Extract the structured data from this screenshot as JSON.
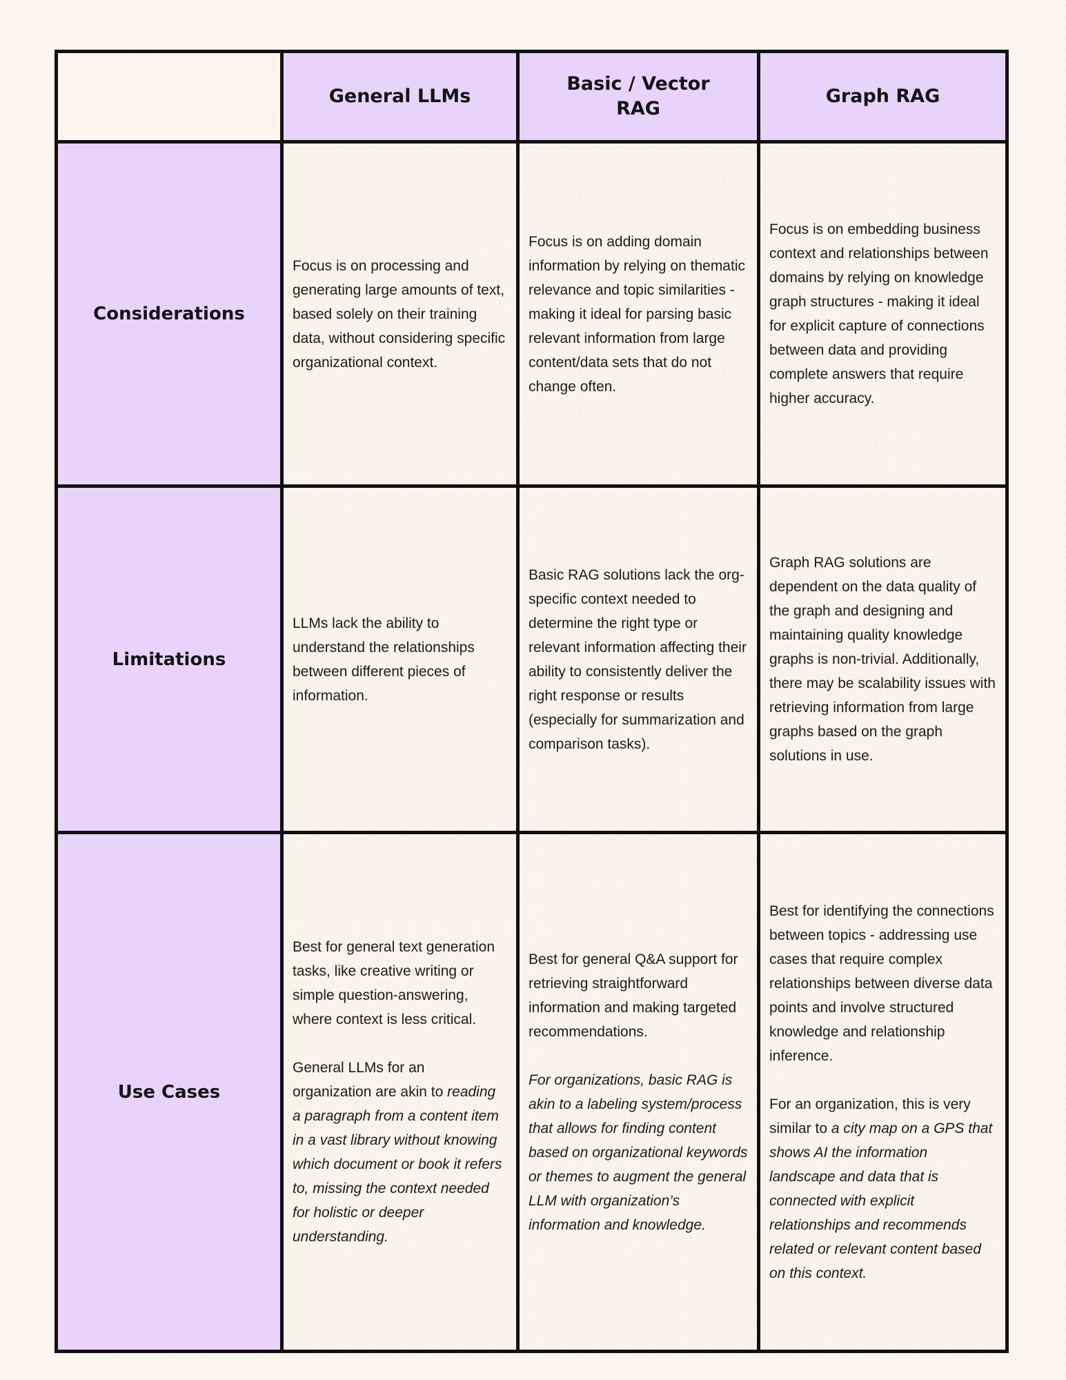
{
  "page": {
    "background_color": "#faf5ed"
  },
  "table": {
    "border_color": "#111111",
    "header_bg": "#e8d4fb",
    "label_bg": "#e8d4fb",
    "cell_bg": "#f8f4ec",
    "column_headers": [
      "General LLMs",
      "Basic / Vector RAG",
      "Graph RAG"
    ],
    "row_labels": [
      "Considerations",
      "Limitations",
      "Use Cases"
    ],
    "cells": {
      "considerations": {
        "general_llms": [
          [
            {
              "t": "Focus is on processing and generating large amounts of text, based solely on their training data, without considering specific organizational context.",
              "i": false
            }
          ]
        ],
        "basic_vector_rag": [
          [
            {
              "t": "Focus is on adding domain information by relying on thematic relevance and topic similarities - making it ideal for parsing basic relevant information from large content/data sets that do not change often.",
              "i": false
            }
          ]
        ],
        "graph_rag": [
          [
            {
              "t": "Focus is on embedding business context and relationships between domains by relying on knowledge graph structures - making it ideal for explicit capture of connections between data and providing complete answers that require higher accuracy.",
              "i": false
            }
          ]
        ]
      },
      "limitations": {
        "general_llms": [
          [
            {
              "t": "LLMs lack the ability to understand the relationships between different pieces of information.",
              "i": false
            }
          ]
        ],
        "basic_vector_rag": [
          [
            {
              "t": "Basic RAG solutions lack the org-specific context needed to determine the right type or relevant information affecting their ability to consistently deliver the right response or results (especially for summarization and comparison tasks).",
              "i": false
            }
          ]
        ],
        "graph_rag": [
          [
            {
              "t": "Graph RAG solutions are dependent on the data quality of the graph and designing and maintaining quality knowledge graphs is non-trivial. Additionally, there may be scalability issues with retrieving information from large graphs based on the graph solutions in use.",
              "i": false
            }
          ]
        ]
      },
      "use_cases": {
        "general_llms": [
          [
            {
              "t": "Best for general text generation tasks, like creative writing or simple question-answering, where context is less critical.",
              "i": false
            }
          ],
          [
            {
              "t": "General LLMs for an organization are akin to ",
              "i": false
            },
            {
              "t": "reading a paragraph from a content item in a vast library without knowing which document or book it refers to, missing the context needed for holistic or deeper understanding.",
              "i": true
            }
          ]
        ],
        "basic_vector_rag": [
          [
            {
              "t": "Best for general Q&A support for retrieving straightforward information and making targeted recommendations.",
              "i": false
            }
          ],
          [
            {
              "t": "For organizations, basic RAG is akin to a labeling system/process that allows for finding content based on organizational keywords or themes to augment the general LLM with organization’s information and knowledge.",
              "i": true
            }
          ]
        ],
        "graph_rag": [
          [
            {
              "t": "Best for identifying the connections between topics - addressing use cases that require complex relationships between diverse data points and involve structured knowledge and relationship inference.",
              "i": false
            }
          ],
          [
            {
              "t": "For an organization, this is very similar to ",
              "i": false
            },
            {
              "t": "a city map on a GPS that shows AI the information landscape and data that is connected with explicit relationships and recommends related or relevant content based on this context.",
              "i": true
            }
          ]
        ]
      }
    }
  }
}
